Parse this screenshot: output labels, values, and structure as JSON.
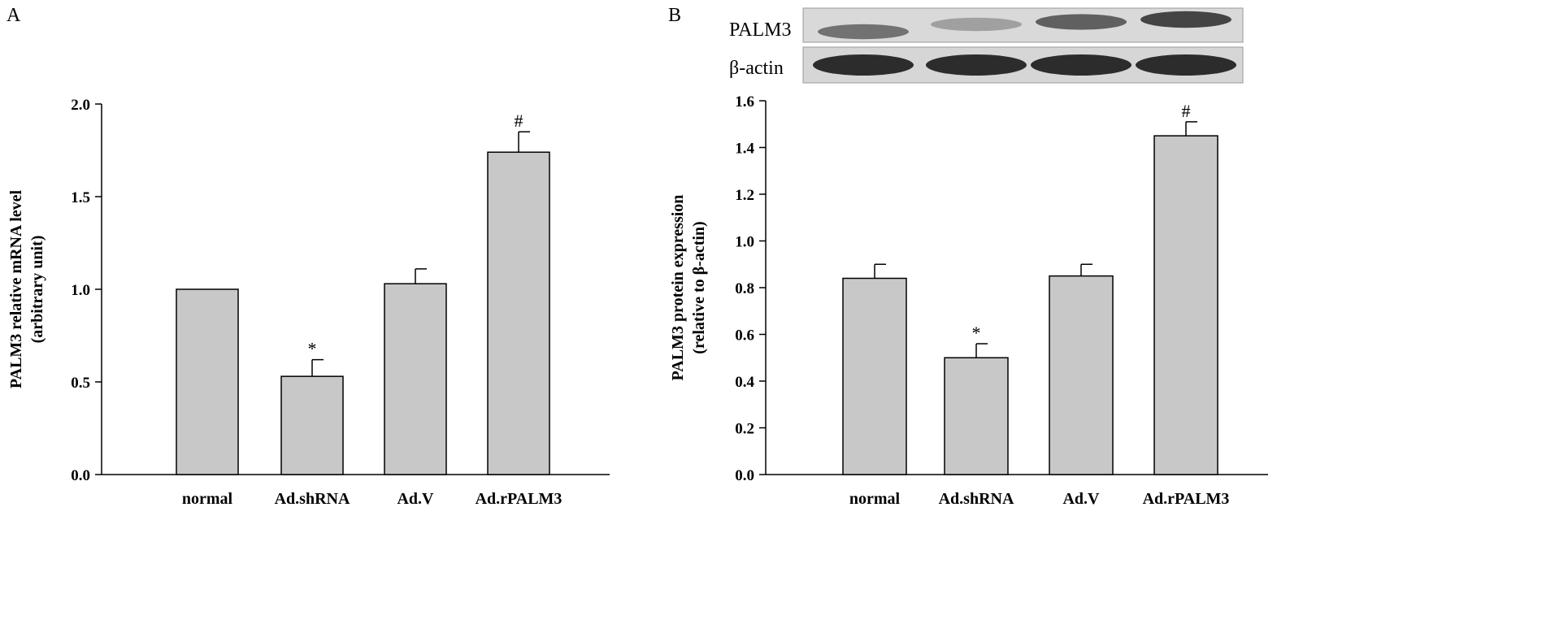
{
  "figure": {
    "panels": [
      {
        "letter": "A"
      },
      {
        "letter": "B"
      }
    ]
  },
  "blot": {
    "row_labels": [
      "PALM3",
      "β-actin"
    ],
    "palm3_intensity": [
      0.55,
      0.3,
      0.65,
      0.8
    ],
    "actin_intensity": [
      0.9,
      0.9,
      0.9,
      0.9
    ]
  },
  "chart_data": [
    {
      "type": "bar",
      "categories": [
        "normal",
        "Ad.shRNA",
        "Ad.V",
        "Ad.rPALM3"
      ],
      "values": [
        1.0,
        0.53,
        1.03,
        1.74
      ],
      "errors": [
        0.0,
        0.09,
        0.08,
        0.11
      ],
      "markers": [
        "",
        "*",
        "",
        "#"
      ],
      "title": "",
      "xlabel": "",
      "ylabel": "PALM3 relative mRNA level",
      "ylabel2": "(arbitrary unit)",
      "ylim": [
        0,
        2.0
      ],
      "yticks": [
        0.0,
        0.5,
        1.0,
        1.5,
        2.0
      ],
      "ytick_labels": [
        "0.0",
        "0.5",
        "1.0",
        "1.5",
        "2.0"
      ],
      "grid": false,
      "bar_color": "#c8c8c8"
    },
    {
      "type": "bar",
      "categories": [
        "normal",
        "Ad.shRNA",
        "Ad.V",
        "Ad.rPALM3"
      ],
      "values": [
        0.84,
        0.5,
        0.85,
        1.45
      ],
      "errors": [
        0.06,
        0.06,
        0.05,
        0.06
      ],
      "markers": [
        "",
        "*",
        "",
        "#"
      ],
      "title": "",
      "xlabel": "",
      "ylabel": "PALM3 protein expression",
      "ylabel2": "(relative to β-actin)",
      "ylim": [
        0,
        1.6
      ],
      "yticks": [
        0.0,
        0.2,
        0.4,
        0.6,
        0.8,
        1.0,
        1.2,
        1.4,
        1.6
      ],
      "ytick_labels": [
        "0.0",
        "0.2",
        "0.4",
        "0.6",
        "0.8",
        "1.0",
        "1.2",
        "1.4",
        "1.6"
      ],
      "grid": false,
      "bar_color": "#c8c8c8"
    }
  ]
}
